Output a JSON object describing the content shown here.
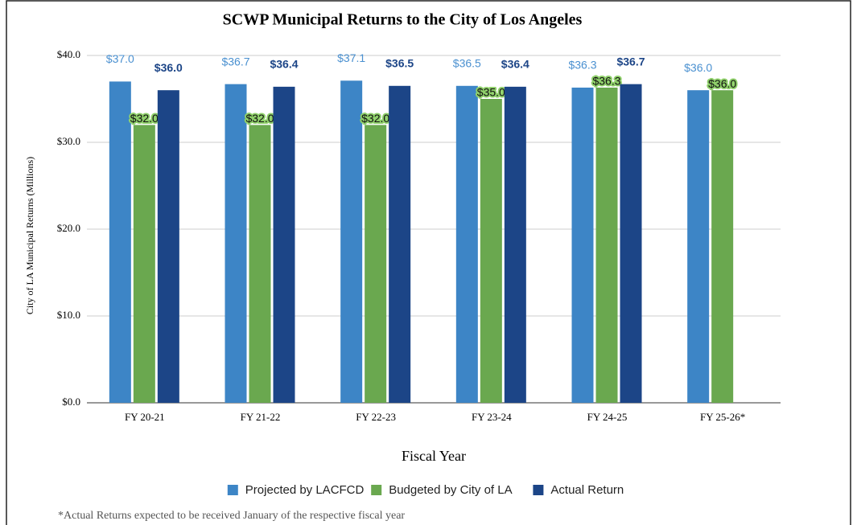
{
  "chart_data": {
    "type": "bar",
    "title": "SCWP Municipal Returns to the City of Los Angeles",
    "x_label": "Fiscal Year",
    "y_label": "City of LA Municipal Returns (Millions)",
    "categories": [
      "FY 20-21",
      "FY 21-22",
      "FY 22-23",
      "FY 23-24",
      "FY 24-25",
      "FY 25-26*"
    ],
    "series": [
      {
        "name": "Projected by LACFCD",
        "color": "#3d85c6",
        "values": [
          37.0,
          36.7,
          37.1,
          36.5,
          36.3,
          36.0
        ],
        "value_labels": [
          "$37.0",
          "$36.7",
          "$37.1",
          "$36.5",
          "$36.3",
          "$36.0"
        ]
      },
      {
        "name": "Budgeted by City of LA",
        "color": "#6aa84f",
        "values": [
          32.0,
          32.0,
          32.0,
          35.0,
          36.3,
          36.0
        ],
        "value_labels": [
          "$32.0",
          "$32.0",
          "$32.0",
          "$35.0",
          "$36.3",
          "$36.0"
        ]
      },
      {
        "name": "Actual Return",
        "color": "#1c4587",
        "values": [
          36.0,
          36.4,
          36.5,
          36.4,
          36.7,
          null
        ],
        "value_labels": [
          "$36.0",
          "$36.4",
          "$36.5",
          "$36.4",
          "$36.7",
          null
        ]
      }
    ],
    "ylim": [
      0,
      40
    ],
    "yticks": [
      {
        "value": 0,
        "label": "$0.0"
      },
      {
        "value": 10,
        "label": "$10.0"
      },
      {
        "value": 20,
        "label": "$20.0"
      },
      {
        "value": 30,
        "label": "$30.0"
      },
      {
        "value": 40,
        "label": "$40.0"
      }
    ],
    "grid": true,
    "legend": "bottom",
    "footnote": "*Actual Returns expected to be received January of the respective fiscal year"
  }
}
